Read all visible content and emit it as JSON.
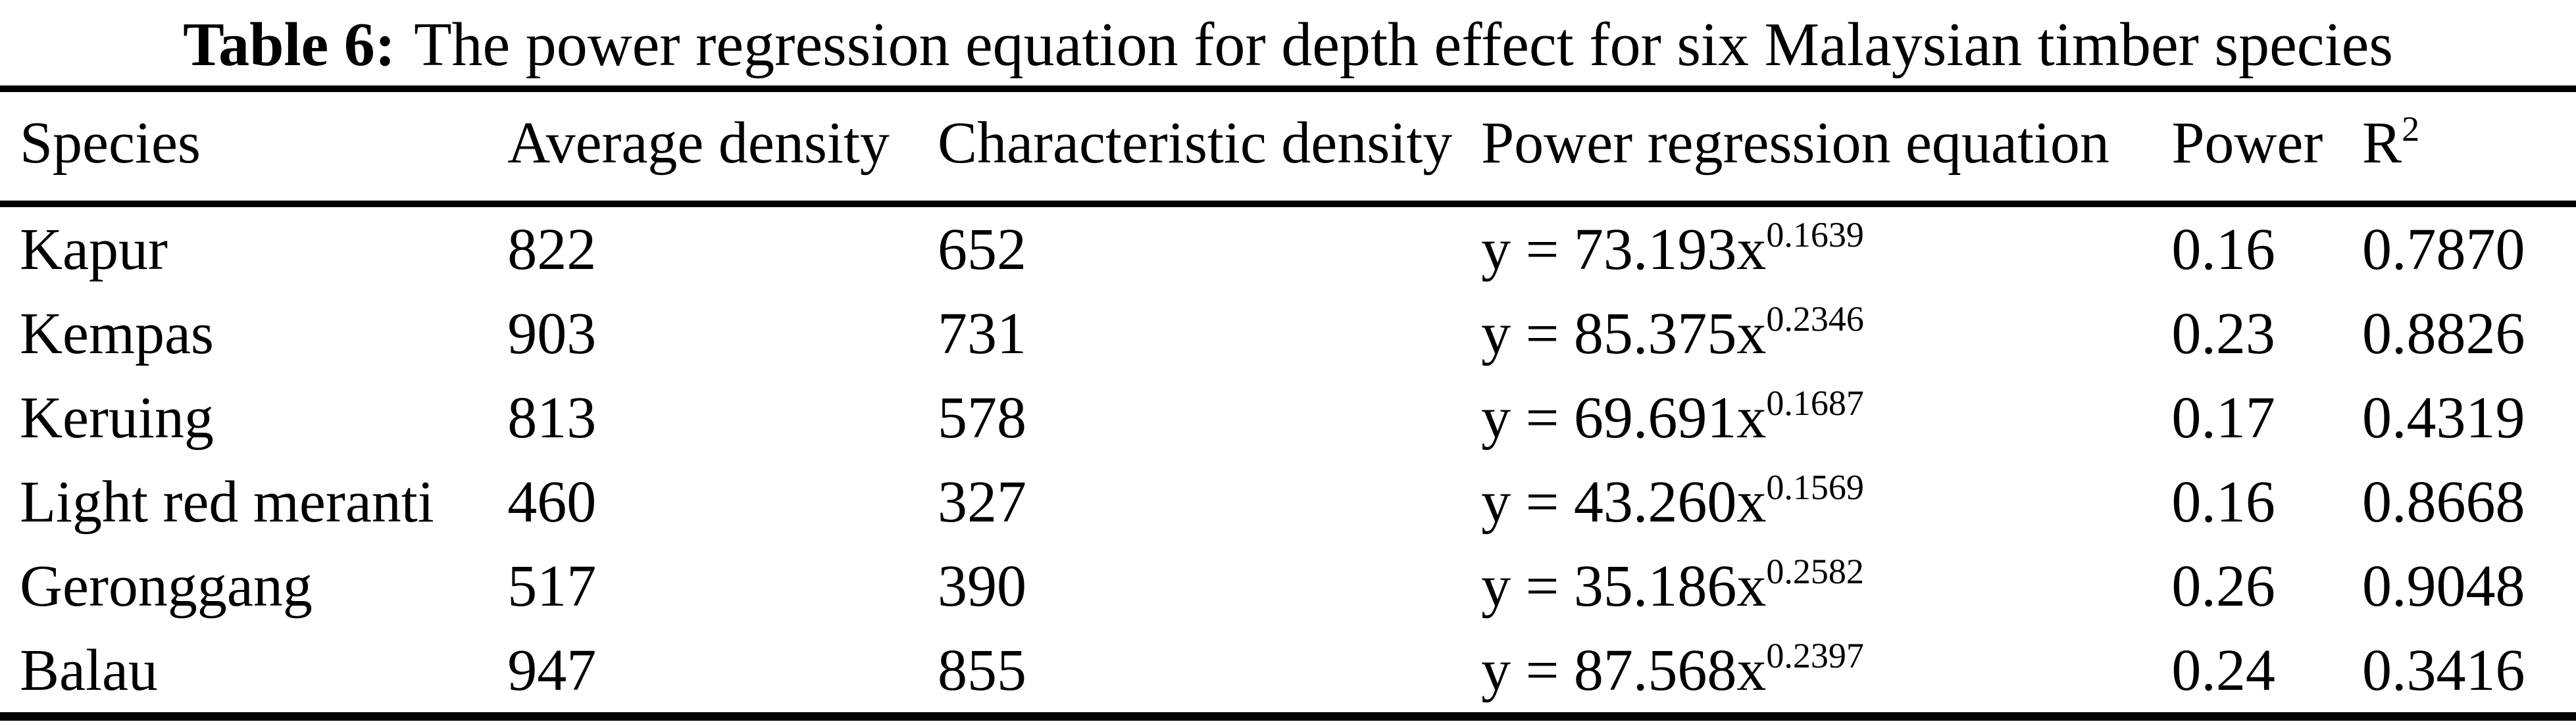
{
  "table": {
    "caption": {
      "label": "Table 6:",
      "text": "The power regression equation for depth effect for six Malaysian timber species"
    },
    "columns": {
      "species": "Species",
      "avg_density": "Average density",
      "char_density": "Characteristic density",
      "equation": "Power regression equation",
      "power": "Power",
      "r2_base": "R",
      "r2_sup": "2"
    },
    "rows": [
      {
        "species": "Kapur",
        "avg_density": "822",
        "char_density": "652",
        "eq_base": "y = 73.193x",
        "eq_exp": "0.1639",
        "power": "0.16",
        "r2": "0.7870"
      },
      {
        "species": "Kempas",
        "avg_density": "903",
        "char_density": "731",
        "eq_base": "y = 85.375x",
        "eq_exp": "0.2346",
        "power": "0.23",
        "r2": "0.8826"
      },
      {
        "species": "Keruing",
        "avg_density": "813",
        "char_density": "578",
        "eq_base": "y = 69.691x",
        "eq_exp": "0.1687",
        "power": "0.17",
        "r2": "0.4319"
      },
      {
        "species": "Light red meranti",
        "avg_density": "460",
        "char_density": "327",
        "eq_base": "y = 43.260x",
        "eq_exp": "0.1569",
        "power": "0.16",
        "r2": "0.8668"
      },
      {
        "species": "Geronggang",
        "avg_density": "517",
        "char_density": "390",
        "eq_base": "y = 35.186x",
        "eq_exp": "0.2582",
        "power": "0.26",
        "r2": "0.9048"
      },
      {
        "species": "Balau",
        "avg_density": "947",
        "char_density": "855",
        "eq_base": "y = 87.568x",
        "eq_exp": "0.2397",
        "power": "0.24",
        "r2": "0.3416"
      }
    ]
  }
}
